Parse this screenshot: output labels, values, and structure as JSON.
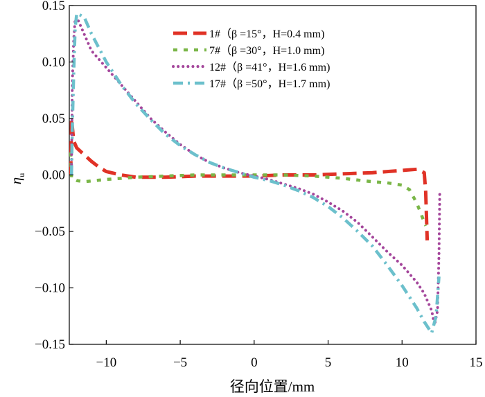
{
  "chart_data": {
    "type": "line",
    "title": "",
    "xlabel": "径向位置/mm",
    "ylabel": "ηu",
    "ylabel_main": "η",
    "ylabel_sub": "u",
    "xlim": [
      -12.5,
      15
    ],
    "ylim": [
      -0.15,
      0.15
    ],
    "xticks": [
      -10,
      -5,
      0,
      5,
      10,
      15
    ],
    "xtick_labels": [
      "−10",
      "−5",
      "0",
      "5",
      "10",
      "15"
    ],
    "yticks": [
      -0.15,
      -0.1,
      -0.05,
      0.0,
      0.05,
      0.1,
      0.15
    ],
    "ytick_labels": [
      "−0.15",
      "−0.10",
      "−0.05",
      "0.00",
      "0.05",
      "0.10",
      "0.15"
    ],
    "grid": false,
    "legend_position": "top-right",
    "series": [
      {
        "name": "1#（β =15°，H=0.4 mm)",
        "label": {
          "id": "1#",
          "beta": "β =15°",
          "H": "H=0.4 mm"
        },
        "color": "#e03226",
        "style": "dashed-thick",
        "points": [
          [
            -12.4,
            0.0
          ],
          [
            -12.35,
            0.05
          ],
          [
            -12.2,
            0.03
          ],
          [
            -12.0,
            0.024
          ],
          [
            -11.5,
            0.018
          ],
          [
            -11.0,
            0.012
          ],
          [
            -10.5,
            0.007
          ],
          [
            -10.0,
            0.003
          ],
          [
            -9.0,
            0.0
          ],
          [
            -8.0,
            -0.002
          ],
          [
            -6.0,
            -0.002
          ],
          [
            -4.0,
            -0.001
          ],
          [
            -2.0,
            -0.001
          ],
          [
            0.0,
            -0.001
          ],
          [
            2.0,
            0.0
          ],
          [
            4.0,
            0.0
          ],
          [
            6.0,
            0.001
          ],
          [
            8.0,
            0.002
          ],
          [
            9.0,
            0.003
          ],
          [
            10.0,
            0.004
          ],
          [
            11.0,
            0.005
          ],
          [
            11.5,
            0.002
          ],
          [
            11.6,
            -0.015
          ],
          [
            11.7,
            -0.058
          ]
        ]
      },
      {
        "name": "7#（β =30°，H=1.0 mm)",
        "label": {
          "id": "7#",
          "beta": "β =30°",
          "H": "H=1.0 mm"
        },
        "color": "#7ab648",
        "style": "dashed-short",
        "points": [
          [
            -12.4,
            0.02
          ],
          [
            -12.35,
            -0.003
          ],
          [
            -12.0,
            -0.005
          ],
          [
            -11.5,
            -0.006
          ],
          [
            -10.0,
            -0.004
          ],
          [
            -8.0,
            -0.002
          ],
          [
            -6.0,
            -0.001
          ],
          [
            -4.0,
            0.0
          ],
          [
            -2.0,
            0.0
          ],
          [
            0.0,
            0.0
          ],
          [
            2.0,
            0.0
          ],
          [
            4.0,
            -0.001
          ],
          [
            6.0,
            -0.003
          ],
          [
            8.0,
            -0.006
          ],
          [
            9.0,
            -0.007
          ],
          [
            10.0,
            -0.009
          ],
          [
            10.5,
            -0.013
          ],
          [
            11.0,
            -0.025
          ],
          [
            11.3,
            -0.035
          ],
          [
            11.6,
            -0.045
          ]
        ]
      },
      {
        "name": "12#（β =41°，H=1.6 mm)",
        "label": {
          "id": "12#",
          "beta": "β =41°",
          "H": "H=1.6 mm"
        },
        "color": "#a4469b",
        "style": "dotted",
        "points": [
          [
            -12.35,
            0.005
          ],
          [
            -12.3,
            0.08
          ],
          [
            -12.2,
            0.12
          ],
          [
            -12.1,
            0.138
          ],
          [
            -12.0,
            0.14
          ],
          [
            -11.5,
            0.125
          ],
          [
            -11.0,
            0.11
          ],
          [
            -10.0,
            0.095
          ],
          [
            -9.0,
            0.08
          ],
          [
            -8.0,
            0.065
          ],
          [
            -7.0,
            0.05
          ],
          [
            -6.0,
            0.038
          ],
          [
            -5.0,
            0.027
          ],
          [
            -4.0,
            0.018
          ],
          [
            -3.0,
            0.011
          ],
          [
            -2.0,
            0.006
          ],
          [
            -1.0,
            0.002
          ],
          [
            0.0,
            -0.001
          ],
          [
            1.0,
            -0.004
          ],
          [
            2.0,
            -0.008
          ],
          [
            3.0,
            -0.012
          ],
          [
            4.0,
            -0.017
          ],
          [
            5.0,
            -0.024
          ],
          [
            6.0,
            -0.032
          ],
          [
            7.0,
            -0.042
          ],
          [
            8.0,
            -0.055
          ],
          [
            9.0,
            -0.068
          ],
          [
            10.0,
            -0.08
          ],
          [
            11.0,
            -0.095
          ],
          [
            11.5,
            -0.105
          ],
          [
            12.0,
            -0.12
          ],
          [
            12.2,
            -0.133
          ],
          [
            12.4,
            -0.12
          ],
          [
            12.5,
            -0.07
          ],
          [
            12.55,
            -0.015
          ]
        ]
      },
      {
        "name": "17#（β =50°，H=1.7 mm)",
        "label": {
          "id": "17#",
          "beta": "β =50°",
          "H": "H=1.7 mm"
        },
        "color": "#6cc0cc",
        "style": "dash-dot",
        "points": [
          [
            -12.35,
            0.0
          ],
          [
            -12.3,
            0.04
          ],
          [
            -12.2,
            0.09
          ],
          [
            -12.1,
            0.13
          ],
          [
            -12.0,
            0.143
          ],
          [
            -11.5,
            0.14
          ],
          [
            -11.0,
            0.125
          ],
          [
            -10.0,
            0.1
          ],
          [
            -9.0,
            0.08
          ],
          [
            -8.0,
            0.063
          ],
          [
            -7.0,
            0.049
          ],
          [
            -6.0,
            0.036
          ],
          [
            -5.0,
            0.026
          ],
          [
            -4.0,
            0.018
          ],
          [
            -3.0,
            0.011
          ],
          [
            -2.0,
            0.006
          ],
          [
            -1.0,
            0.002
          ],
          [
            0.0,
            -0.002
          ],
          [
            1.0,
            -0.005
          ],
          [
            2.0,
            -0.009
          ],
          [
            3.0,
            -0.014
          ],
          [
            4.0,
            -0.02
          ],
          [
            5.0,
            -0.028
          ],
          [
            6.0,
            -0.038
          ],
          [
            7.0,
            -0.05
          ],
          [
            8.0,
            -0.063
          ],
          [
            9.0,
            -0.08
          ],
          [
            10.0,
            -0.098
          ],
          [
            11.0,
            -0.118
          ],
          [
            11.5,
            -0.13
          ],
          [
            12.0,
            -0.14
          ],
          [
            12.3,
            -0.125
          ],
          [
            12.5,
            -0.09
          ]
        ]
      }
    ]
  }
}
